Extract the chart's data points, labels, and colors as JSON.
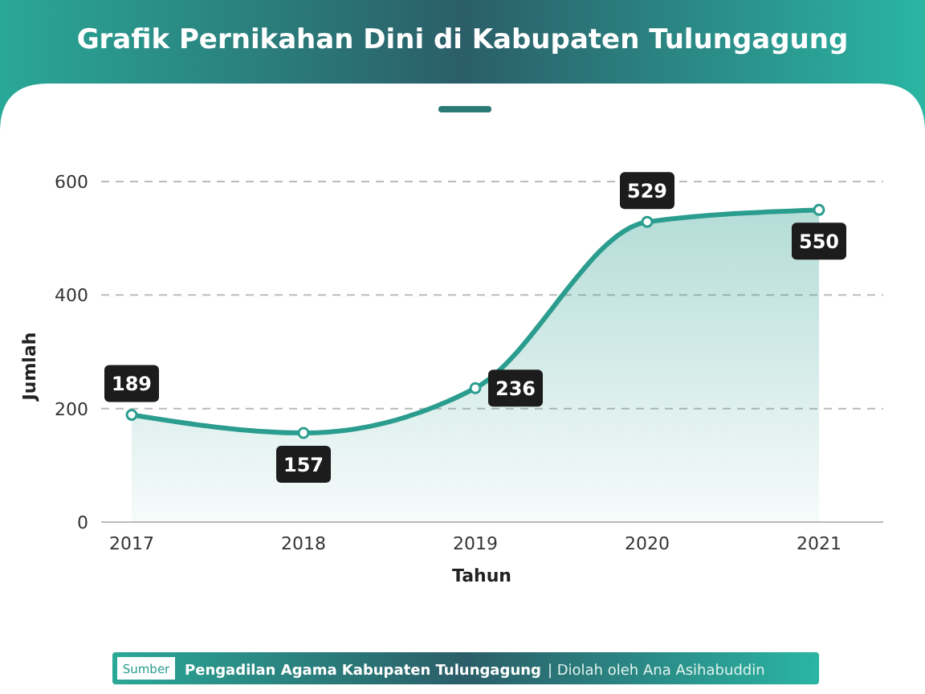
{
  "chart_data": {
    "type": "area",
    "title": "Grafik Pernikahan Dini di Kabupaten Tulungagung",
    "xlabel": "Tahun",
    "ylabel": "Jumlah",
    "categories": [
      "2017",
      "2018",
      "2019",
      "2020",
      "2021"
    ],
    "series": [
      {
        "color": "#2a9d8f",
        "values": [
          189,
          157,
          236,
          529,
          550
        ]
      }
    ],
    "ylim": [
      0,
      600
    ],
    "yticks": [
      0,
      200,
      400,
      600
    ],
    "grid": "y",
    "marker": "circle",
    "data_labels": true,
    "annotations": [
      "Sumber",
      "Pengadilan Agama Kabupaten Tulungagung",
      "| Diolah oleh Ana Asihabuddin"
    ]
  }
}
